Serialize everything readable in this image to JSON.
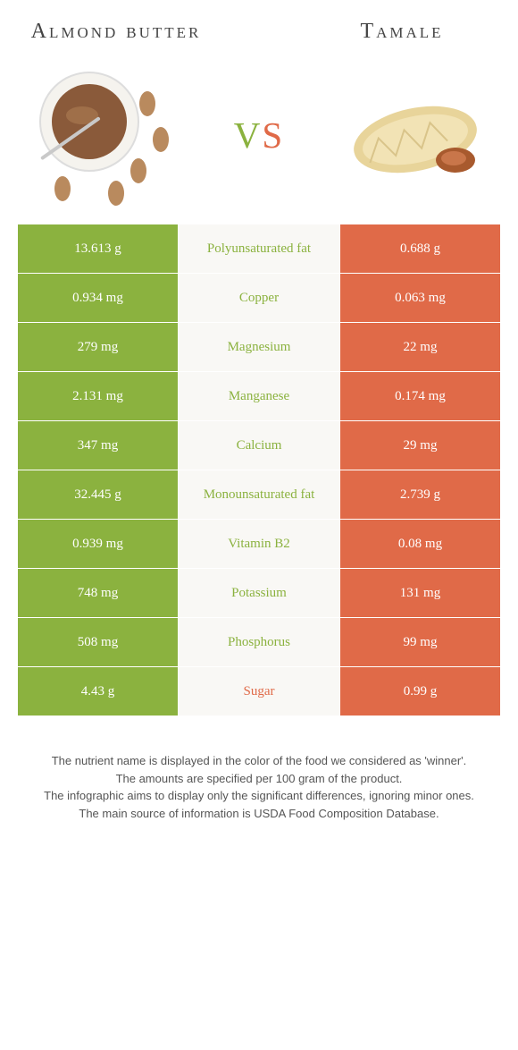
{
  "colors": {
    "left": "#8bb23f",
    "right": "#e06a48",
    "mid_bg": "#f9f8f5",
    "text": "#444"
  },
  "foods": {
    "left": {
      "title": "Almond butter"
    },
    "right": {
      "title": "Tamale"
    }
  },
  "vs": {
    "v": "v",
    "s": "s"
  },
  "rows": [
    {
      "label": "Polyunsaturated fat",
      "left": "13.613 g",
      "right": "0.688 g",
      "winner": "left"
    },
    {
      "label": "Copper",
      "left": "0.934 mg",
      "right": "0.063 mg",
      "winner": "left"
    },
    {
      "label": "Magnesium",
      "left": "279 mg",
      "right": "22 mg",
      "winner": "left"
    },
    {
      "label": "Manganese",
      "left": "2.131 mg",
      "right": "0.174 mg",
      "winner": "left"
    },
    {
      "label": "Calcium",
      "left": "347 mg",
      "right": "29 mg",
      "winner": "left"
    },
    {
      "label": "Monounsaturated fat",
      "left": "32.445 g",
      "right": "2.739 g",
      "winner": "left"
    },
    {
      "label": "Vitamin B2",
      "left": "0.939 mg",
      "right": "0.08 mg",
      "winner": "left"
    },
    {
      "label": "Potassium",
      "left": "748 mg",
      "right": "131 mg",
      "winner": "left"
    },
    {
      "label": "Phosphorus",
      "left": "508 mg",
      "right": "99 mg",
      "winner": "left"
    },
    {
      "label": "Sugar",
      "left": "4.43 g",
      "right": "0.99 g",
      "winner": "right"
    }
  ],
  "notes": [
    "The nutrient name is displayed in the color of the food we considered as 'winner'.",
    "The amounts are specified per 100 gram of the product.",
    "The infographic aims to display only the significant differences, ignoring minor ones.",
    "The main source of information is USDA Food Composition Database."
  ]
}
